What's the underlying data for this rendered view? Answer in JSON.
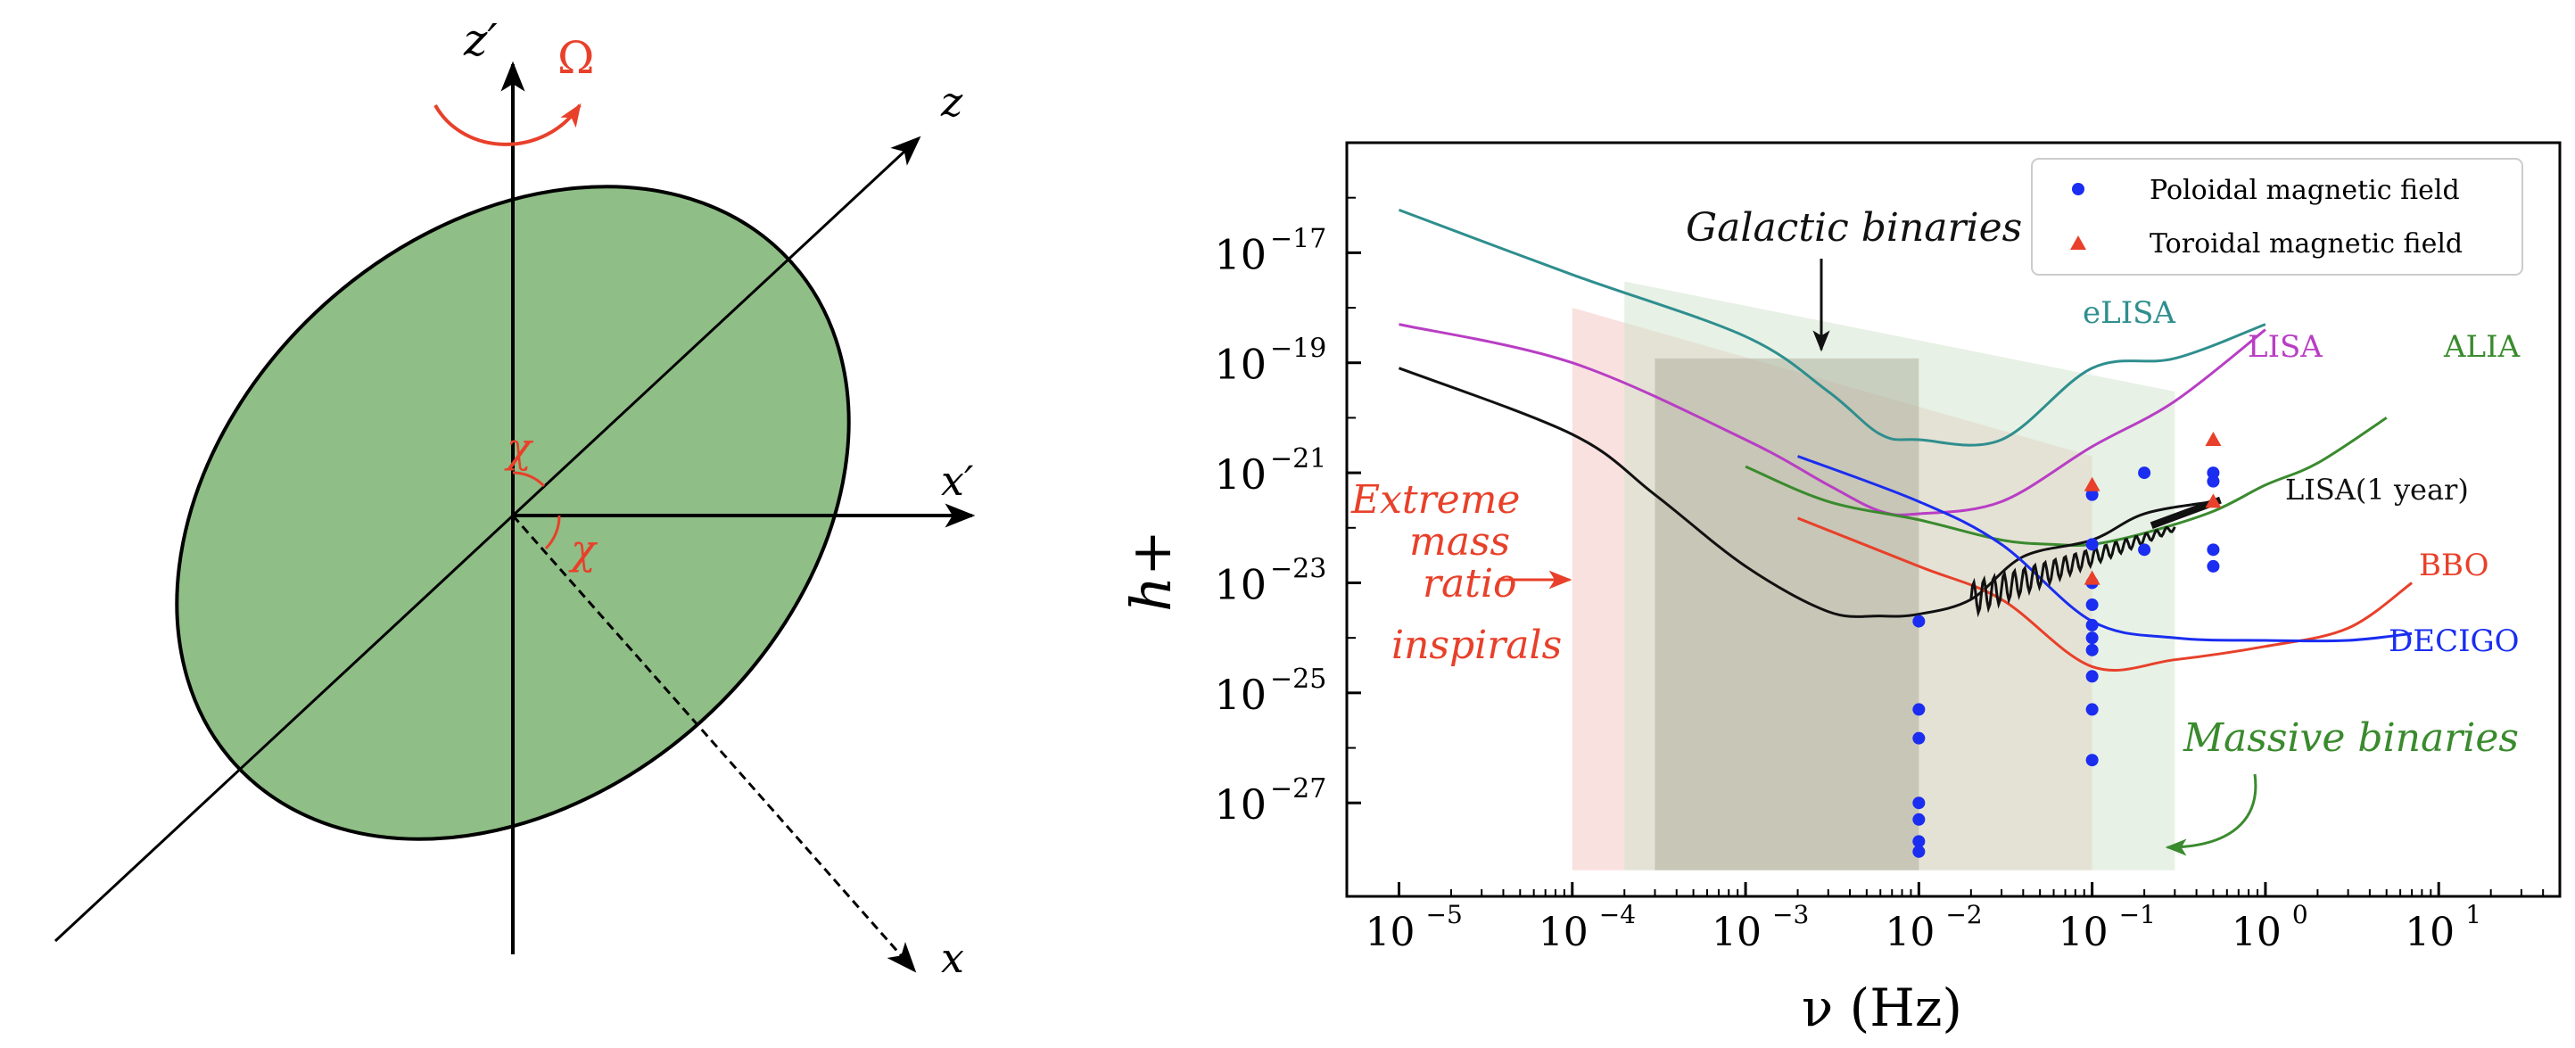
{
  "diagram": {
    "axis_labels": {
      "z_prime": "z′",
      "z": "z",
      "x_prime": "x′",
      "x": "x"
    },
    "rotation_label": "Ω",
    "angle_label": "χ",
    "colors": {
      "ellipse_fill": "#8fbe86",
      "accent": "#e8402a"
    }
  },
  "chart_data": {
    "type": "line",
    "xlabel": "ν (Hz)",
    "ylabel": "h+",
    "x_scale": "log",
    "y_scale": "log",
    "xlim": [
      5e-06,
      50
    ],
    "ylim": [
      2e-29,
      1e-15
    ],
    "x_ticks": [
      {
        "value": 1e-05,
        "base": "10",
        "exp": "−5"
      },
      {
        "value": 0.0001,
        "base": "10",
        "exp": "−4"
      },
      {
        "value": 0.001,
        "base": "10",
        "exp": "−3"
      },
      {
        "value": 0.01,
        "base": "10",
        "exp": "−2"
      },
      {
        "value": 0.1,
        "base": "10",
        "exp": "−1"
      },
      {
        "value": 1,
        "base": "10",
        "exp": "0"
      },
      {
        "value": 10,
        "base": "10",
        "exp": "1"
      }
    ],
    "y_ticks": [
      {
        "value": 1e-17,
        "base": "10",
        "exp": "−17"
      },
      {
        "value": 1e-19,
        "base": "10",
        "exp": "−19"
      },
      {
        "value": 1e-21,
        "base": "10",
        "exp": "−21"
      },
      {
        "value": 1e-23,
        "base": "10",
        "exp": "−23"
      },
      {
        "value": 1e-25,
        "base": "10",
        "exp": "−25"
      },
      {
        "value": 1e-27,
        "base": "10",
        "exp": "−27"
      }
    ],
    "legend": {
      "placement": "top-right",
      "entries": [
        {
          "label": "Poloidal magnetic field",
          "marker": "circle",
          "color": "#1a2df0"
        },
        {
          "label": "Toroidal magnetic field",
          "marker": "triangle",
          "color": "#e8402a"
        }
      ]
    },
    "regions": [
      {
        "label": "Extreme mass ratio inspirals",
        "label_lines": [
          "Extreme",
          "mass",
          "ratio",
          "inspirals"
        ],
        "color": "#e8402a",
        "fill": "#f4c9c4",
        "opacity": 0.55,
        "polygon": [
          [
            0.0001,
            6e-29
          ],
          [
            0.0001,
            1e-18
          ],
          [
            0.1,
            2e-21
          ],
          [
            0.1,
            6e-29
          ]
        ]
      },
      {
        "label": "Galactic binaries",
        "color": "#111111",
        "fill": "#7a6556",
        "opacity": 0.45,
        "polygon": [
          [
            0.0003,
            6e-29
          ],
          [
            0.0003,
            1.2e-19
          ],
          [
            0.01,
            1.2e-19
          ],
          [
            0.01,
            6e-29
          ]
        ]
      },
      {
        "label": "Massive binaries",
        "color": "#3a8a2e",
        "fill": "#cfe3cb",
        "opacity": 0.5,
        "polygon": [
          [
            0.0002,
            6e-29
          ],
          [
            0.0002,
            3e-18
          ],
          [
            0.3,
            3e-20
          ],
          [
            0.3,
            6e-29
          ]
        ]
      }
    ],
    "series": [
      {
        "name": "eLISA",
        "color": "#2f8e8e",
        "x": [
          1e-05,
          0.0001,
          0.001,
          0.003,
          0.006,
          0.01,
          0.03,
          0.1,
          0.3,
          1
        ],
        "y": [
          6e-17,
          4e-18,
          3e-19,
          3e-20,
          5e-21,
          4e-21,
          4e-21,
          8e-20,
          1.2e-19,
          5e-19
        ]
      },
      {
        "name": "LISA",
        "color": "#b83ec4",
        "x": [
          1e-05,
          0.0001,
          0.001,
          0.003,
          0.006,
          0.01,
          0.03,
          0.1,
          0.3,
          1
        ],
        "y": [
          5e-19,
          1e-19,
          4e-21,
          6e-22,
          2e-22,
          1.8e-22,
          3e-22,
          3e-21,
          2e-20,
          4e-19
        ]
      },
      {
        "name": "ALIA",
        "color": "#3a8a2e",
        "x": [
          0.001,
          0.003,
          0.01,
          0.03,
          0.06,
          0.1,
          0.2,
          0.5,
          1,
          2,
          5
        ],
        "y": [
          1.3e-21,
          3e-22,
          1.4e-22,
          6e-23,
          5e-23,
          5e-23,
          8e-23,
          2e-22,
          6e-22,
          1.5e-21,
          1e-20
        ]
      },
      {
        "name": "LISA(1 year)",
        "color": "#111111",
        "x": [
          1e-05,
          0.0001,
          0.0003,
          0.001,
          0.003,
          0.006,
          0.01,
          0.02,
          0.04,
          0.1,
          0.2,
          0.5
        ],
        "y": [
          8e-20,
          5e-21,
          4e-22,
          2e-23,
          3e-24,
          2.5e-24,
          2.7e-24,
          5e-24,
          3e-23,
          6e-23,
          1.8e-22,
          3e-22
        ]
      },
      {
        "name": "BBO",
        "color": "#e8402a",
        "x": [
          0.002,
          0.01,
          0.03,
          0.1,
          0.3,
          1,
          3,
          7
        ],
        "y": [
          1.5e-22,
          2e-23,
          5e-24,
          3e-25,
          4e-25,
          7e-25,
          1.5e-24,
          1e-23
        ]
      },
      {
        "name": "DECIGO",
        "color": "#1a2df0",
        "x": [
          0.002,
          0.01,
          0.03,
          0.1,
          0.3,
          1,
          3,
          7
        ],
        "y": [
          2e-21,
          3e-22,
          5e-23,
          2e-24,
          1e-24,
          9e-25,
          9e-25,
          1.2e-24
        ]
      }
    ],
    "annotations": [
      {
        "text": "Galactic binaries"
      },
      {
        "text": "Massive binaries"
      }
    ],
    "points_poloidal": [
      {
        "x": 0.01,
        "y": 2e-24
      },
      {
        "x": 0.01,
        "y": 5e-26
      },
      {
        "x": 0.01,
        "y": 1.5e-26
      },
      {
        "x": 0.01,
        "y": 1e-27
      },
      {
        "x": 0.01,
        "y": 5e-28
      },
      {
        "x": 0.01,
        "y": 2e-28
      },
      {
        "x": 0.01,
        "y": 1.3e-28
      },
      {
        "x": 0.1,
        "y": 4e-22
      },
      {
        "x": 0.1,
        "y": 5e-23
      },
      {
        "x": 0.1,
        "y": 1e-23
      },
      {
        "x": 0.1,
        "y": 4e-24
      },
      {
        "x": 0.1,
        "y": 1.7e-24
      },
      {
        "x": 0.1,
        "y": 1e-24
      },
      {
        "x": 0.1,
        "y": 6e-25
      },
      {
        "x": 0.1,
        "y": 2e-25
      },
      {
        "x": 0.1,
        "y": 5e-26
      },
      {
        "x": 0.1,
        "y": 6e-27
      },
      {
        "x": 0.2,
        "y": 1e-21
      },
      {
        "x": 0.2,
        "y": 4e-23
      },
      {
        "x": 0.5,
        "y": 1e-21
      },
      {
        "x": 0.5,
        "y": 7e-22
      },
      {
        "x": 0.5,
        "y": 4e-23
      },
      {
        "x": 0.5,
        "y": 2e-23
      }
    ],
    "points_toroidal": [
      {
        "x": 0.1,
        "y": 6e-22
      },
      {
        "x": 0.1,
        "y": 1.2e-23
      },
      {
        "x": 0.5,
        "y": 4e-21
      },
      {
        "x": 0.5,
        "y": 3e-22
      }
    ]
  }
}
